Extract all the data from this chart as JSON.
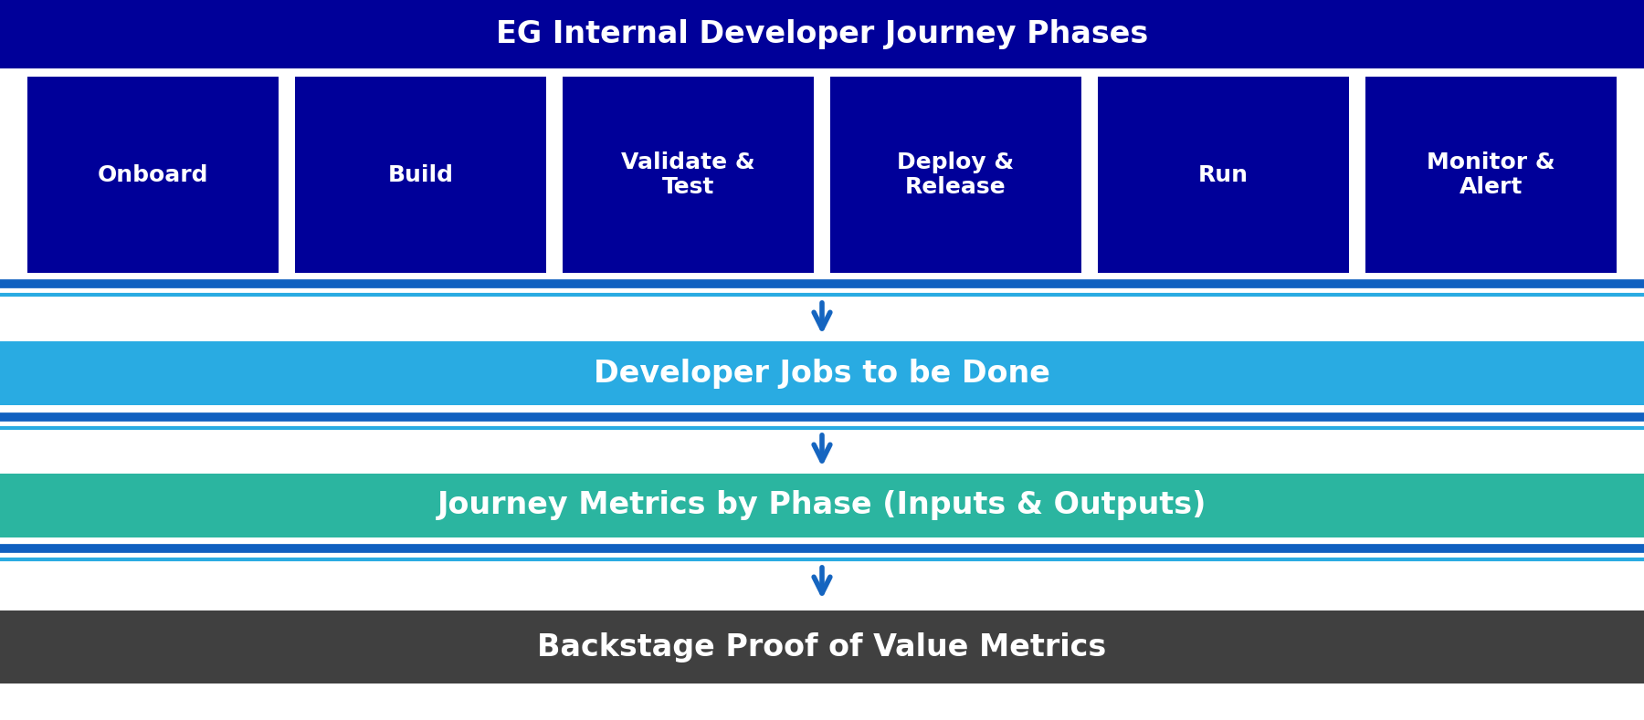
{
  "title": "EG Internal Developer Journey Phases",
  "title_bg": "#000099",
  "title_text_color": "#FFFFFF",
  "title_fontsize": 24,
  "phase_boxes": [
    {
      "label": "Onboard",
      "bg": "#000099",
      "text_color": "#FFFFFF"
    },
    {
      "label": "Build",
      "bg": "#000099",
      "text_color": "#FFFFFF"
    },
    {
      "label": "Validate &\nTest",
      "bg": "#000099",
      "text_color": "#FFFFFF"
    },
    {
      "label": "Deploy &\nRelease",
      "bg": "#000099",
      "text_color": "#FFFFFF"
    },
    {
      "label": "Run",
      "bg": "#000099",
      "text_color": "#FFFFFF"
    },
    {
      "label": "Monitor &\nAlert",
      "bg": "#000099",
      "text_color": "#FFFFFF"
    }
  ],
  "phase_fontsize": 18,
  "sep_color_dark": "#1060C0",
  "sep_color_light": "#29ABE2",
  "arrow_color": "#1565C0",
  "row1_label": "Developer Jobs to be Done",
  "row1_bg": "#29ABE2",
  "row1_text_color": "#FFFFFF",
  "row1_fontsize": 24,
  "row2_label": "Journey Metrics by Phase (Inputs & Outputs)",
  "row2_bg": "#2BB5A0",
  "row2_text_color": "#FFFFFF",
  "row2_fontsize": 24,
  "row3_label": "Backstage Proof of Value Metrics",
  "row3_bg": "#404040",
  "row3_text_color": "#FFFFFF",
  "row3_fontsize": 24,
  "background_color": "#FFFFFF",
  "fig_width": 18.0,
  "fig_height": 7.89
}
